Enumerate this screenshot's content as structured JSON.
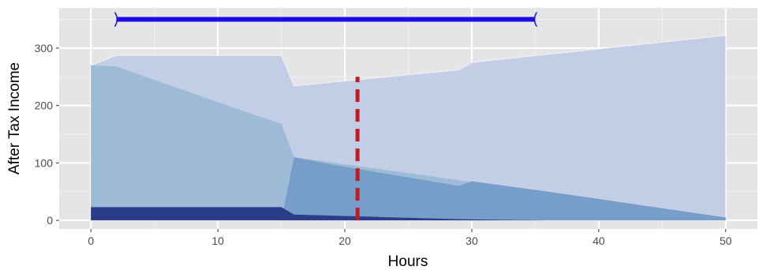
{
  "chart_data": {
    "type": "area",
    "title": "",
    "xlabel": "Hours",
    "ylabel": "After Tax Income",
    "xlim": [
      -2.5,
      52.5
    ],
    "ylim": [
      -15,
      370
    ],
    "x_ticks": [
      0,
      10,
      20,
      30,
      40,
      50
    ],
    "y_ticks": [
      0,
      100,
      200,
      300
    ],
    "grid": true,
    "legend": "none",
    "colors": {
      "panel": "#e5e5e5",
      "grid_major": "#ffffff",
      "total": "#c3cee6",
      "mid": "#9dbbd6",
      "upper_band": "#779dca",
      "base": "#2b3c88",
      "marker_line": "#c41a1f",
      "range_bar": "#1c0de6"
    },
    "series": [
      {
        "color": "#c3cee6",
        "points": [
          [
            0,
            270
          ],
          [
            2,
            287
          ],
          [
            15,
            287
          ],
          [
            16,
            234
          ],
          [
            29,
            262
          ],
          [
            30,
            275
          ],
          [
            50,
            322
          ]
        ]
      },
      {
        "color": "#9dbbd6",
        "points": [
          [
            0,
            270
          ],
          [
            2,
            268
          ],
          [
            11,
            198
          ],
          [
            15,
            168
          ],
          [
            16,
            110
          ],
          [
            50,
            5
          ]
        ]
      },
      {
        "color": "#779dca",
        "points": [
          [
            0,
            0
          ],
          [
            15,
            0
          ],
          [
            16,
            110
          ],
          [
            19,
            97
          ],
          [
            29,
            60
          ],
          [
            30,
            68
          ],
          [
            36,
            50
          ],
          [
            50,
            5
          ]
        ]
      },
      {
        "color": "#2b3c88",
        "points": [
          [
            0,
            23
          ],
          [
            15,
            23
          ],
          [
            16,
            10
          ],
          [
            29,
            2
          ],
          [
            36,
            0
          ],
          [
            50,
            0
          ]
        ]
      }
    ],
    "vertical_line": {
      "x": 21,
      "y_range": [
        0,
        250
      ]
    },
    "range_bar": {
      "x_start": 2,
      "x_end": 35,
      "y": 350
    }
  }
}
